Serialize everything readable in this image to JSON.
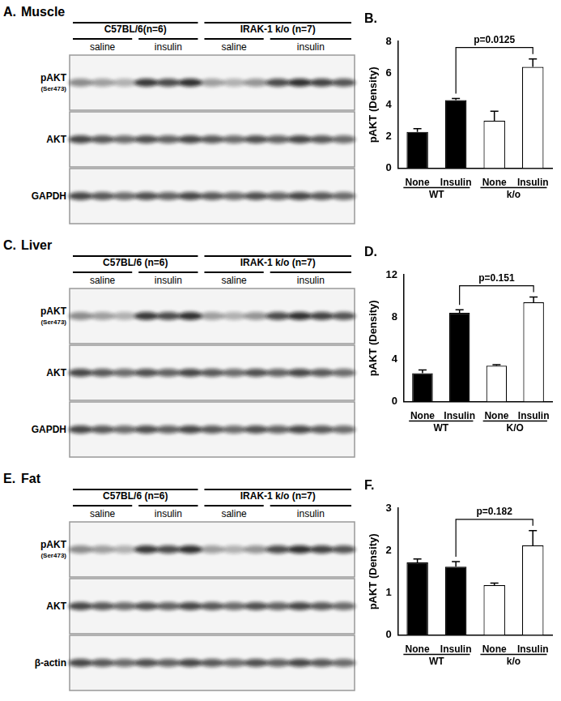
{
  "panels": [
    {
      "letter": "A.",
      "tissue": "Muscle",
      "groups": [
        {
          "label": "C57BL/6(n=6)",
          "treatments": [
            "saline",
            "insulin"
          ]
        },
        {
          "label": "IRAK-1 k/o (n=7)",
          "treatments": [
            "saline",
            "insulin"
          ]
        }
      ],
      "rows": [
        {
          "label": "pAKT",
          "sublabel": "(Ser473)"
        },
        {
          "label": "AKT"
        },
        {
          "label": "GAPDH"
        }
      ]
    },
    {
      "letter": "C.",
      "tissue": "Liver",
      "groups": [
        {
          "label": "C57BL/6 (n=6)",
          "treatments": [
            "saline",
            "insulin"
          ]
        },
        {
          "label": "IRAK-1 k/o (n=7)",
          "treatments": [
            "saline",
            "insulin"
          ]
        }
      ],
      "rows": [
        {
          "label": "pAKT",
          "sublabel": "(Ser473)"
        },
        {
          "label": "AKT"
        },
        {
          "label": "GAPDH"
        }
      ]
    },
    {
      "letter": "E.",
      "tissue": "Fat",
      "groups": [
        {
          "label": "C57BL/6 (n=6)",
          "treatments": [
            "saline",
            "insulin"
          ]
        },
        {
          "label": "IRAK-1 k/o (n=7)",
          "treatments": [
            "saline",
            "insulin"
          ]
        }
      ],
      "rows": [
        {
          "label": "pAKT",
          "sublabel": "(Ser473)"
        },
        {
          "label": "AKT"
        },
        {
          "label": "β-actin"
        }
      ]
    }
  ],
  "chart_data": [
    {
      "type": "bar",
      "title": "B.",
      "y_label": "pAKT (Density)",
      "categories": [
        "None",
        "Insulin",
        "None",
        "Insulin"
      ],
      "groups": [
        "WT",
        "k/o"
      ],
      "values": [
        2.3,
        4.3,
        3.0,
        6.4
      ],
      "errors": [
        0.2,
        0.1,
        0.6,
        0.5
      ],
      "colors": [
        "#000000",
        "#000000",
        "#ffffff",
        "#ffffff"
      ],
      "ylim": [
        0,
        8
      ],
      "yticks": [
        0,
        2,
        4,
        6,
        8
      ],
      "grid": false,
      "annotations": [
        {
          "text": "p=0.0125"
        }
      ]
    },
    {
      "type": "bar",
      "title": "D.",
      "y_label": "pAKT (Density)",
      "categories": [
        "None",
        "Insulin",
        "None",
        "Insulin"
      ],
      "groups": [
        "WT",
        "K/O"
      ],
      "values": [
        2.7,
        8.4,
        3.4,
        9.4
      ],
      "errors": [
        0.3,
        0.3,
        0.1,
        0.5
      ],
      "colors": [
        "#000000",
        "#000000",
        "#ffffff",
        "#ffffff"
      ],
      "ylim": [
        0,
        12
      ],
      "yticks": [
        0,
        4,
        8,
        12
      ],
      "grid": false,
      "annotations": [
        {
          "text": "p=0.151"
        }
      ]
    },
    {
      "type": "bar",
      "title": "F.",
      "y_label": "pAKT (Density)",
      "categories": [
        "None",
        "Insulin",
        "None",
        "Insulin"
      ],
      "groups": [
        "WT",
        "k/o"
      ],
      "values": [
        1.72,
        1.62,
        1.18,
        2.12
      ],
      "errors": [
        0.08,
        0.12,
        0.05,
        0.35
      ],
      "colors": [
        "#000000",
        "#000000",
        "#ffffff",
        "#ffffff"
      ],
      "ylim": [
        0,
        3
      ],
      "yticks": [
        0,
        1,
        2,
        3
      ],
      "grid": false,
      "annotations": [
        {
          "text": "p=0.182"
        }
      ]
    }
  ]
}
